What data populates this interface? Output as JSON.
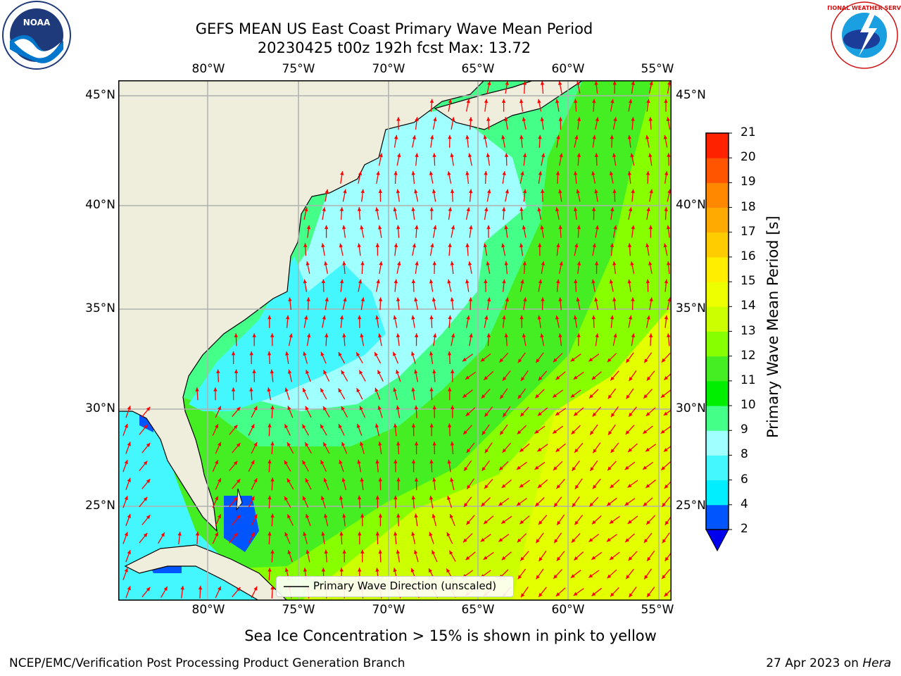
{
  "header": {
    "title_line1": "GEFS MEAN US East Coast Primary Wave Mean Period",
    "title_line2": "20230425 t00z 192h fcst   Max: 13.72"
  },
  "logos": {
    "noaa_text": "NOAA",
    "nws_text": "NATIONAL WEATHER SERVICE"
  },
  "axes": {
    "lon_labels": [
      "80°W",
      "75°W",
      "70°W",
      "65°W",
      "60°W",
      "55°W"
    ],
    "lat_labels": [
      "45°N",
      "40°N",
      "35°N",
      "30°N",
      "25°N"
    ]
  },
  "legend": {
    "label": "Primary Wave Direction (unscaled)"
  },
  "colorbar": {
    "label": "Primary Wave Mean Period [s]",
    "ticks": [
      "2",
      "4",
      "6",
      "8",
      "9",
      "10",
      "11",
      "12",
      "13",
      "14",
      "15",
      "16",
      "17",
      "18",
      "19",
      "20",
      "21"
    ],
    "colors": [
      "#0055ff",
      "#00eeff",
      "#44f7ff",
      "#a0ffff",
      "#44ff88",
      "#00ee00",
      "#44ee22",
      "#88ff00",
      "#ccff00",
      "#eeff00",
      "#ffee00",
      "#ffcc00",
      "#ffaa00",
      "#ff8800",
      "#ff5500",
      "#ff2200"
    ],
    "under_color": "#0000ee"
  },
  "colors": {
    "land": "#efeedd",
    "arrow": "#ff0000",
    "grid": "#b0b0b0"
  },
  "subtitle": "Sea Ice Concentration > 15% is shown in pink to yellow",
  "footer": {
    "left": "NCEP/EMC/Verification Post Processing Product Generation Branch",
    "right_date": "27 Apr 2023 on ",
    "right_host": "Hera"
  }
}
